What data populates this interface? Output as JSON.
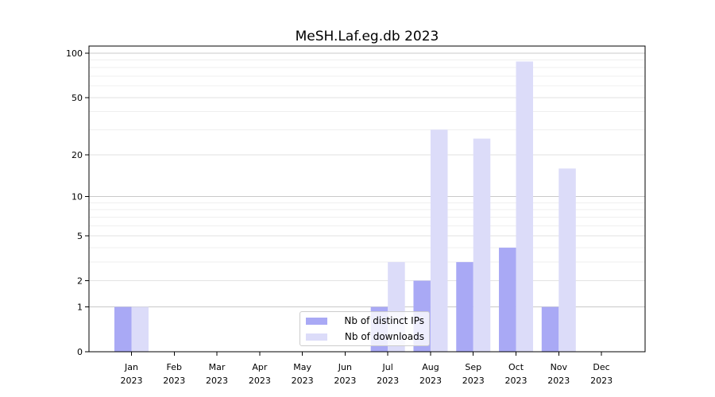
{
  "chart_data": {
    "type": "bar",
    "title": "MeSH.Laf.eg.db 2023",
    "x_axis": {
      "months": [
        "Jan",
        "Feb",
        "Mar",
        "Apr",
        "May",
        "Jun",
        "Jul",
        "Aug",
        "Sep",
        "Oct",
        "Nov",
        "Dec"
      ],
      "year": "2023"
    },
    "y_axis": {
      "scale": "log1p",
      "ticks": [
        0,
        1,
        2,
        5,
        10,
        20,
        50,
        100
      ],
      "minor_gridlines": [
        3,
        4,
        6,
        7,
        8,
        9,
        30,
        40,
        60,
        70,
        80,
        90
      ],
      "ylim": [
        0,
        112
      ],
      "grid": "on"
    },
    "series": [
      {
        "name": "Nb of distinct IPs",
        "color": "#a9a9f5",
        "values": [
          1,
          0,
          0,
          0,
          0,
          0,
          1,
          2,
          3,
          4,
          1,
          0
        ]
      },
      {
        "name": "Nb of downloads",
        "color": "#dcdcf9",
        "values": [
          1,
          0,
          0,
          0,
          0,
          0,
          3,
          30,
          26,
          88,
          16,
          0
        ]
      }
    ],
    "legend": {
      "position": "lower center"
    }
  }
}
